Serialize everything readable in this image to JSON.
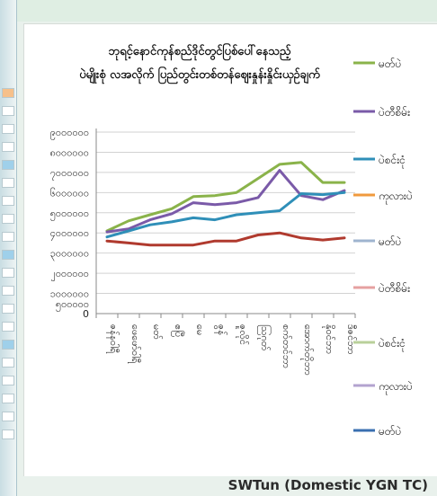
{
  "footer": {
    "credit": "SWTun (Domestic YGN TC)"
  },
  "chart_data": {
    "type": "line",
    "title": "ဘုရင့်နောင်ကုန်စည်ဒိုင်တွင်ပြစ်ပေါ်နေသည့် ပဲမျိုးစုံ လအလိုက် ပြည်တွင်းတစ်တန်ဈေးနှုန်းနှိုင်းယှဉ်ချက်",
    "xlabel": "",
    "ylabel": "",
    "y_tick_labels": [
      "၉၀၀၀၀၀၀",
      "၈၀၀၀၀၀၀",
      "၇၀၀၀၀၀၀",
      "၆၀၀၀၀၀၀",
      "၅၀၀၀၀၀၀",
      "၄၀၀၀၀၀၀",
      "၃၀၀၀၀၀၀",
      "၂၀၀၀၀၀၀",
      "၁၀၀၀၀၀၀",
      "၅၀၀၀၀၀",
      "0"
    ],
    "categories": [
      "ဇန်နဝါရီ",
      "ဖေဖော်ဝါရီ",
      "မတ်",
      "ဧပြီ",
      "မေ",
      "ဇွန်",
      "ဇူလိုင်",
      "ဩဂုတ်",
      "စက်တင်ဘာ",
      "အောက်တိုဘာ",
      "နိုဝင်ဘာ",
      "ဒီဇင်ဘာ"
    ],
    "grid": true,
    "legend_position": "right",
    "legend": [
      {
        "name": "မတ်ပဲ",
        "color": "#8ab34a"
      },
      {
        "name": "ပဲတီစိမ်း",
        "color": "#7a5aa8"
      },
      {
        "name": "ပဲစင်းငုံ",
        "color": "#2f8fb8"
      },
      {
        "name": "ကုလားပဲ",
        "color": "#f09a3e"
      },
      {
        "name": "မတ်ပဲ",
        "color": "#9fb4cf"
      },
      {
        "name": "ပဲတီစိမ်း",
        "color": "#e6a0a0"
      },
      {
        "name": "ပဲစင်းငုံ",
        "color": "#b9d09a"
      },
      {
        "name": "ကုလားပဲ",
        "color": "#b3a3cf"
      },
      {
        "name": "မတ်ပဲ",
        "color": "#3a6fb0"
      }
    ],
    "series": [
      {
        "name": "မတ်ပဲ",
        "color": "#8ab34a",
        "values": [
          4100000,
          4600000,
          4900000,
          5200000,
          5800000,
          5850000,
          6000000,
          6700000,
          7400000,
          7500000,
          6500000,
          6500000
        ]
      },
      {
        "name": "ပဲတီစိမ်း",
        "color": "#7a5aa8",
        "values": [
          4050000,
          4200000,
          4650000,
          4950000,
          5500000,
          5400000,
          5500000,
          5750000,
          7100000,
          5850000,
          5650000,
          6100000
        ]
      },
      {
        "name": "ပဲစင်းငုံ",
        "color": "#2f8fb8",
        "values": [
          3800000,
          4100000,
          4400000,
          4550000,
          4750000,
          4650000,
          4900000,
          5000000,
          5100000,
          5950000,
          5900000,
          6000000
        ]
      },
      {
        "name": "",
        "color": "#b03a2e",
        "values": [
          3600000,
          3500000,
          3400000,
          3400000,
          3400000,
          3600000,
          3600000,
          3900000,
          4000000,
          3750000,
          3650000,
          3750000
        ]
      }
    ]
  }
}
